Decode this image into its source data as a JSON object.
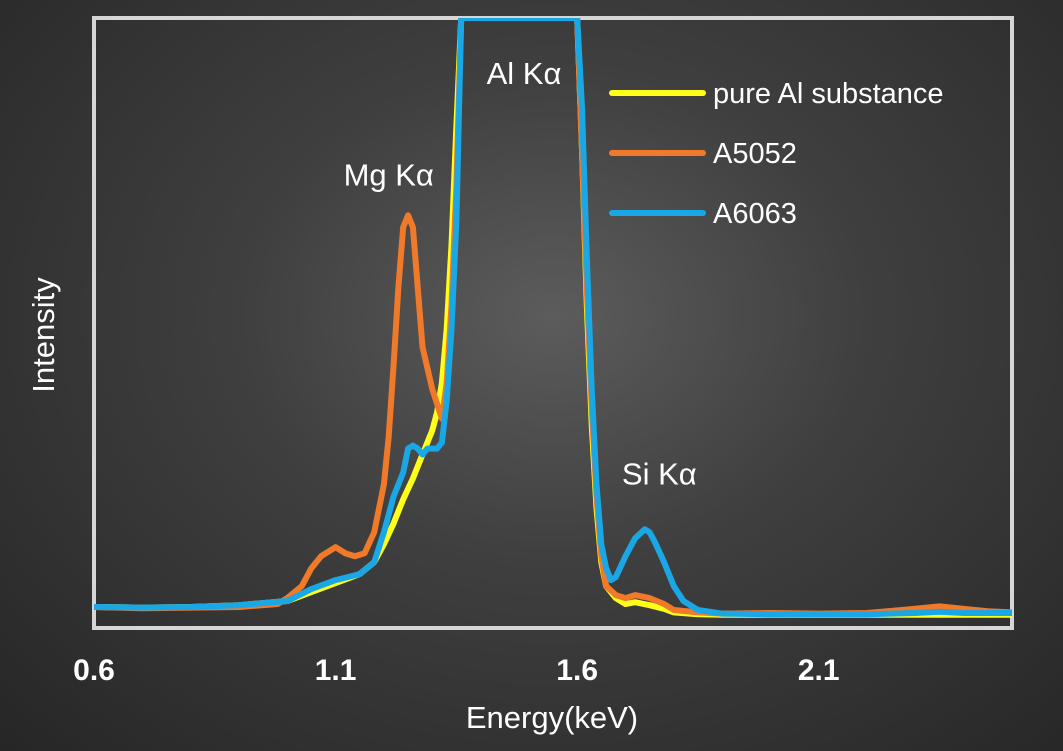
{
  "chart_data": {
    "type": "line",
    "title": "",
    "xlabel": "Energy(keV)",
    "ylabel": "Intensity",
    "xlim": [
      0.6,
      2.5
    ],
    "ylim": [
      0,
      100
    ],
    "x_ticks": [
      {
        "value": 0.6,
        "label": "0.6"
      },
      {
        "value": 1.1,
        "label": "1.1"
      },
      {
        "value": 1.6,
        "label": "1.6"
      },
      {
        "value": 2.1,
        "label": "2.1"
      }
    ],
    "grid": false,
    "y_tick_labels": false,
    "legend_position": "top-right",
    "annotations": [
      {
        "text": "Al Kα",
        "x": 1.49,
        "y": 89
      },
      {
        "text": "Mg Kα",
        "x": 1.21,
        "y": 72
      },
      {
        "text": "Si Kα",
        "x": 1.77,
        "y": 22
      }
    ],
    "series": [
      {
        "name": "pure Al substance",
        "color": "#ffff1a",
        "x": [
          0.6,
          0.7,
          0.8,
          0.9,
          1.0,
          1.05,
          1.1,
          1.15,
          1.18,
          1.2,
          1.22,
          1.24,
          1.26,
          1.28,
          1.3,
          1.31,
          1.32,
          1.33,
          1.34,
          1.35,
          1.36,
          1.37,
          1.6,
          1.61,
          1.62,
          1.63,
          1.64,
          1.65,
          1.66,
          1.68,
          1.7,
          1.72,
          1.75,
          1.78,
          1.8,
          1.85,
          1.9,
          2.0,
          2.2,
          2.4,
          2.5
        ],
        "y": [
          1.5,
          1.4,
          1.5,
          1.8,
          2.5,
          4,
          5.5,
          7,
          9,
          12,
          15.5,
          19.5,
          23,
          27,
          31,
          34,
          39,
          48,
          62,
          82,
          100,
          100,
          100,
          78,
          52,
          32,
          18,
          9,
          5,
          3,
          2,
          2.3,
          1.8,
          1.2,
          0.6,
          0.3,
          0.2,
          0.2,
          0.2,
          0.2,
          0.2
        ]
      },
      {
        "name": "A5052",
        "color": "#f07a2a",
        "x": [
          0.6,
          0.7,
          0.8,
          0.9,
          0.98,
          1.0,
          1.03,
          1.05,
          1.07,
          1.09,
          1.1,
          1.12,
          1.14,
          1.16,
          1.18,
          1.2,
          1.21,
          1.22,
          1.23,
          1.24,
          1.25,
          1.26,
          1.27,
          1.28,
          1.3,
          1.32,
          1.33,
          1.34,
          1.35,
          1.36,
          1.37,
          1.6,
          1.61,
          1.62,
          1.63,
          1.64,
          1.65,
          1.66,
          1.68,
          1.7,
          1.72,
          1.75,
          1.78,
          1.8,
          1.85,
          1.9,
          2.0,
          2.1,
          2.2,
          2.3,
          2.35,
          2.4,
          2.45,
          2.5
        ],
        "y": [
          1.5,
          1.3,
          1.4,
          1.5,
          2,
          3,
          5,
          8,
          10,
          11,
          11.5,
          10.5,
          10,
          10.5,
          14,
          22,
          30,
          42,
          55,
          65,
          67,
          65,
          55,
          45,
          38,
          33,
          39,
          52,
          72,
          100,
          100,
          100,
          78,
          55,
          35,
          20,
          10,
          5,
          3.5,
          3,
          3.5,
          3,
          2,
          1,
          0.6,
          0.4,
          0.5,
          0.4,
          0.5,
          1.2,
          1.6,
          1.2,
          0.8,
          0.6
        ]
      },
      {
        "name": "A6063",
        "color": "#1aa7e6",
        "x": [
          0.6,
          0.7,
          0.8,
          0.9,
          1.0,
          1.05,
          1.1,
          1.15,
          1.18,
          1.2,
          1.22,
          1.24,
          1.25,
          1.26,
          1.27,
          1.28,
          1.29,
          1.3,
          1.31,
          1.32,
          1.33,
          1.34,
          1.35,
          1.36,
          1.37,
          1.6,
          1.61,
          1.62,
          1.63,
          1.64,
          1.65,
          1.66,
          1.67,
          1.68,
          1.7,
          1.72,
          1.74,
          1.75,
          1.76,
          1.78,
          1.8,
          1.82,
          1.85,
          1.9,
          2.0,
          2.2,
          2.3,
          2.35,
          2.4,
          2.5
        ],
        "y": [
          1.5,
          1.4,
          1.5,
          1.8,
          2.5,
          4.5,
          6,
          7,
          9,
          14,
          20,
          24,
          28,
          28.5,
          28,
          27,
          28,
          28,
          28,
          29,
          36,
          48,
          66,
          100,
          100,
          100,
          85,
          60,
          38,
          22,
          12,
          8,
          6,
          6.5,
          10,
          13,
          14.5,
          14,
          12.5,
          9,
          5,
          2.5,
          1,
          0.4,
          0.3,
          0.3,
          0.5,
          0.7,
          0.5,
          0.5
        ]
      }
    ]
  }
}
